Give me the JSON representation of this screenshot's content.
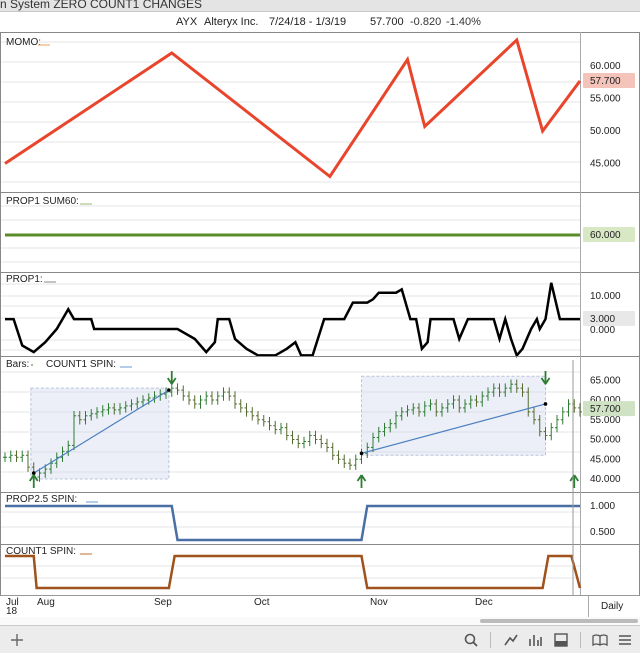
{
  "window": {
    "title": "n System ZERO COUNT1 CHANGES"
  },
  "symbol": {
    "ticker": "AYX",
    "name": "Alteryx Inc.",
    "range": "7/24/18 - 1/3/19",
    "last": "57.700",
    "change": "-0.820",
    "pct": "-1.40%"
  },
  "panels": {
    "momo": {
      "label": "MOMO:",
      "ticks": [
        "60.000",
        "55.000",
        "50.000",
        "45.000"
      ],
      "current": "57.700",
      "color": "#e8452c",
      "points": [
        [
          0,
          45
        ],
        [
          58,
          62
        ],
        [
          113,
          43
        ],
        [
          140,
          61
        ],
        [
          146,
          50.7
        ],
        [
          178,
          64
        ],
        [
          187,
          50
        ],
        [
          200,
          57.7
        ]
      ]
    },
    "prop1sum60": {
      "label": "PROP1 SUM60:",
      "current": "60.000",
      "color": "#5b8c2a"
    },
    "prop1": {
      "label": "PROP1:",
      "ticks": [
        "10.000",
        "0.000"
      ],
      "current": "3.000",
      "points": [
        [
          0,
          3
        ],
        [
          3,
          3
        ],
        [
          6,
          -5
        ],
        [
          10,
          -7
        ],
        [
          14,
          -4
        ],
        [
          18,
          0
        ],
        [
          20,
          3
        ],
        [
          22,
          6
        ],
        [
          24,
          3
        ],
        [
          30,
          3
        ],
        [
          31,
          0
        ],
        [
          60,
          0
        ],
        [
          66,
          -3
        ],
        [
          70,
          -7
        ],
        [
          73,
          -4
        ],
        [
          74,
          3
        ],
        [
          78,
          3
        ],
        [
          80,
          -3
        ],
        [
          84,
          -6
        ],
        [
          88,
          -8
        ],
        [
          89,
          -8
        ],
        [
          94,
          -8
        ],
        [
          98,
          -6
        ],
        [
          101,
          -4
        ],
        [
          103,
          -8
        ],
        [
          107,
          -8
        ],
        [
          111,
          3
        ],
        [
          118,
          3
        ],
        [
          121,
          8
        ],
        [
          126,
          8
        ],
        [
          128,
          9
        ],
        [
          130,
          11
        ],
        [
          136,
          11
        ],
        [
          138,
          12
        ],
        [
          141,
          3
        ],
        [
          143,
          3
        ],
        [
          145,
          -6
        ],
        [
          147,
          -4
        ],
        [
          148,
          3
        ],
        [
          156,
          3
        ],
        [
          158,
          -3
        ],
        [
          161,
          3
        ],
        [
          164,
          3
        ],
        [
          169,
          3
        ],
        [
          170,
          3
        ],
        [
          172,
          -3
        ],
        [
          174,
          3
        ],
        [
          176,
          -3
        ],
        [
          178,
          -8
        ],
        [
          180,
          -6
        ],
        [
          183,
          0
        ],
        [
          185,
          3
        ],
        [
          186,
          0
        ],
        [
          188,
          3
        ],
        [
          190,
          14
        ],
        [
          193,
          3
        ],
        [
          200,
          3
        ]
      ]
    },
    "bars": {
      "label": "Bars:",
      "study": "COUNT1 SPIN:",
      "ticks": [
        "65.000",
        "60.000",
        "55.000",
        "50.000",
        "45.000",
        "40.000"
      ],
      "current": "57.700",
      "closes": [
        45.5,
        46,
        45.5,
        46,
        43,
        40.5,
        41.5,
        42.5,
        44,
        45.5,
        47,
        48.5,
        56,
        55,
        56,
        56.5,
        57,
        57.5,
        58,
        57.5,
        58,
        58.5,
        59,
        59.5,
        60,
        60.5,
        61,
        61.5,
        62,
        63,
        62.5,
        61,
        60,
        59,
        60,
        61,
        60,
        61,
        62,
        61,
        59,
        58,
        57,
        56,
        55,
        54.5,
        53.5,
        52.5,
        53,
        51,
        50,
        49,
        49.5,
        51,
        50,
        49,
        48,
        46,
        45,
        44,
        43.5,
        45,
        46.5,
        48,
        50.5,
        52,
        53,
        54,
        56,
        57,
        57.5,
        58,
        57,
        58.5,
        59,
        57,
        58,
        59,
        60,
        58,
        59,
        60,
        59.5,
        61,
        62,
        63,
        62,
        63,
        64,
        63,
        62,
        57,
        55,
        52,
        51,
        53,
        55,
        57,
        59,
        58,
        57
      ],
      "boxes": [
        [
          9,
          40,
          57,
          63
        ],
        [
          124,
          46,
          188,
          66
        ]
      ],
      "lines": [
        [
          10,
          41.5,
          57,
          62.5
        ],
        [
          124,
          46.5,
          188,
          59
        ]
      ],
      "arrows": [
        [
          10,
          "up"
        ],
        [
          58,
          "down"
        ],
        [
          124,
          "up"
        ],
        [
          188,
          "down"
        ],
        [
          198,
          "up"
        ]
      ]
    },
    "prop25": {
      "label": "PROP2.5 SPIN:",
      "ticks": [
        "1.000",
        "0.500"
      ],
      "current": "1.000",
      "points": [
        [
          0,
          1
        ],
        [
          58,
          1
        ],
        [
          60,
          0
        ],
        [
          124,
          0
        ],
        [
          126,
          1
        ],
        [
          200,
          1
        ]
      ]
    },
    "count1": {
      "label": "COUNT1 SPIN:",
      "points": [
        [
          0,
          1
        ],
        [
          10,
          1
        ],
        [
          11,
          0
        ],
        [
          57,
          0
        ],
        [
          59,
          1
        ],
        [
          124,
          1
        ],
        [
          126,
          0
        ],
        [
          187,
          0
        ],
        [
          189,
          1
        ],
        [
          197,
          1
        ],
        [
          200,
          0
        ]
      ]
    }
  },
  "xaxis": {
    "labels": [
      "Jul",
      "18",
      "Aug",
      "Sep",
      "Oct",
      "Nov",
      "Dec"
    ],
    "period": "Daily"
  },
  "toolbar": {
    "icons": [
      "add-icon",
      "search-icon",
      "draw-line-icon",
      "chart-type-icon",
      "panel-layout-icon",
      "book-icon",
      "list-icon"
    ]
  }
}
